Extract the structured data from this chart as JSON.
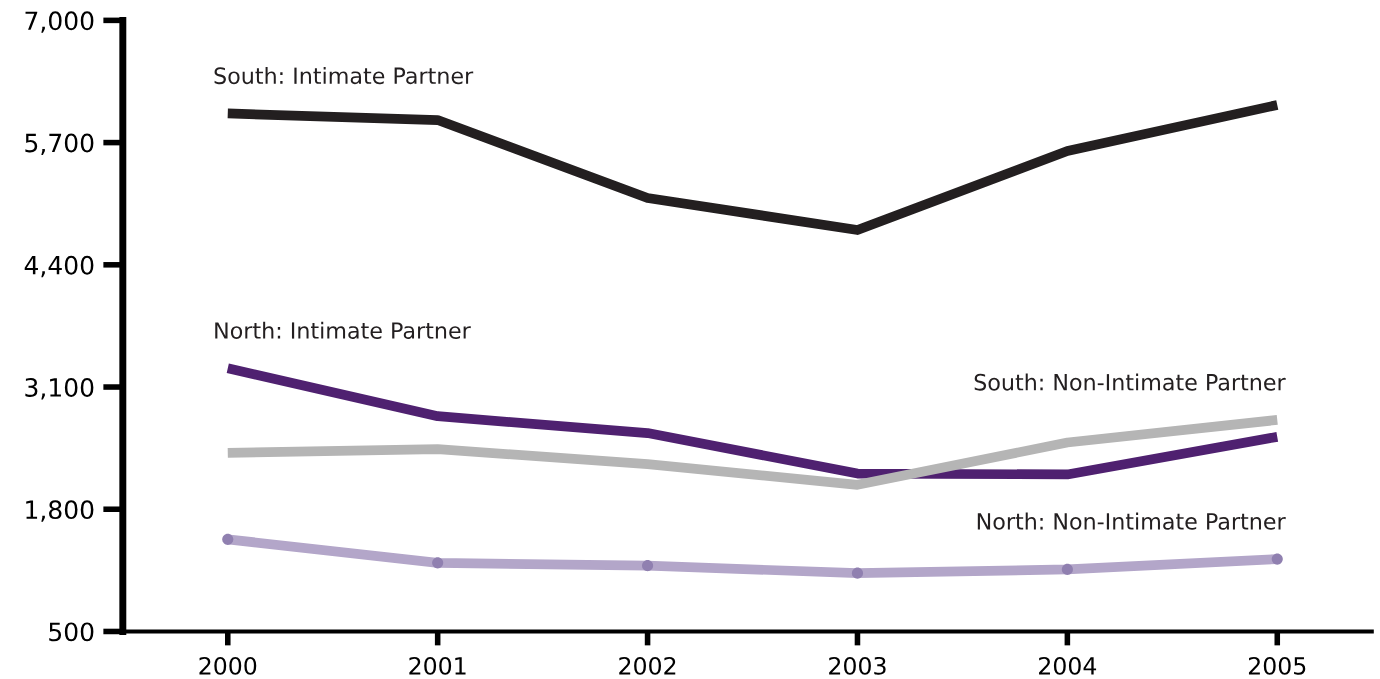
{
  "chart_data": {
    "type": "line",
    "categories": [
      "2000",
      "2001",
      "2002",
      "2003",
      "2004",
      "2005"
    ],
    "series": [
      {
        "name": "South: Intimate Partner",
        "color": "#231f20",
        "values": [
          6010,
          5940,
          5110,
          4770,
          5610,
          6100
        ]
      },
      {
        "name": "North: Intimate Partner",
        "color": "#4f2170",
        "values": [
          3300,
          2790,
          2610,
          2180,
          2170,
          2570
        ]
      },
      {
        "name": "South: Non-Intimate Partner",
        "color": "#b5b5b5",
        "values": [
          2400,
          2440,
          2280,
          2060,
          2510,
          2750
        ]
      },
      {
        "name": "North: Non-Intimate Partner",
        "color": "#b3a6c9",
        "values": [
          1480,
          1230,
          1200,
          1120,
          1160,
          1270
        ],
        "marker": "circle"
      }
    ],
    "ylim": [
      500,
      7000
    ],
    "yticks": [
      {
        "value": 500,
        "label": "500"
      },
      {
        "value": 1800,
        "label": "1,800"
      },
      {
        "value": 3100,
        "label": "3,100"
      },
      {
        "value": 4400,
        "label": "4,400"
      },
      {
        "value": 5700,
        "label": "5,700"
      },
      {
        "value": 7000,
        "label": "7,000"
      }
    ],
    "grid": false,
    "legend": false
  }
}
